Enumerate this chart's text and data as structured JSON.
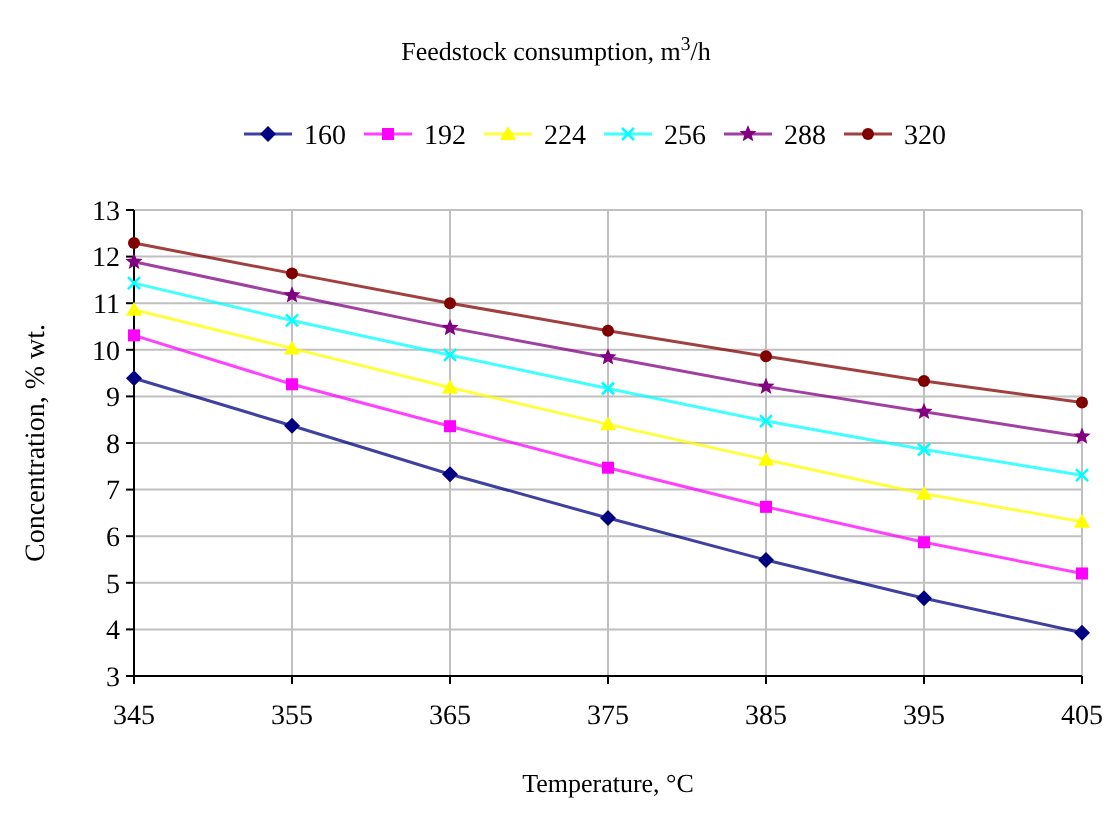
{
  "chart_data": {
    "type": "line",
    "legend_title": "Feedstock consumption, m$^{3}$/h",
    "xlabel": "Temperature, °C",
    "ylabel": "Concentration, % wt.",
    "x": [
      345,
      355,
      365,
      375,
      385,
      395,
      405
    ],
    "series": [
      {
        "name": "160",
        "color": "#000080",
        "marker": "diamond",
        "values": [
          9.39,
          8.37,
          7.33,
          6.39,
          5.49,
          4.67,
          3.93
        ]
      },
      {
        "name": "192",
        "color": "#ff00ff",
        "marker": "square",
        "values": [
          10.31,
          9.26,
          8.36,
          7.47,
          6.63,
          5.87,
          5.2
        ]
      },
      {
        "name": "224",
        "color": "#ffff00",
        "marker": "triangle",
        "values": [
          10.86,
          10.03,
          9.19,
          8.4,
          7.64,
          6.91,
          6.31
        ]
      },
      {
        "name": "256",
        "color": "#00ffff",
        "marker": "cross",
        "values": [
          11.43,
          10.63,
          9.89,
          9.17,
          8.47,
          7.86,
          7.31
        ]
      },
      {
        "name": "288",
        "color": "#800080",
        "marker": "star",
        "values": [
          11.89,
          11.17,
          10.47,
          9.84,
          9.21,
          8.67,
          8.14
        ]
      },
      {
        "name": "320",
        "color": "#800000",
        "marker": "circle",
        "values": [
          12.29,
          11.64,
          11.0,
          10.41,
          9.86,
          9.33,
          8.87
        ]
      }
    ],
    "xlim": [
      345,
      405
    ],
    "xticks": [
      345,
      355,
      365,
      375,
      385,
      395,
      405
    ],
    "ylim": [
      3,
      13
    ],
    "yticks": [
      3,
      4,
      5,
      6,
      7,
      8,
      9,
      10,
      11,
      12,
      13
    ],
    "grid": true,
    "legend": "top"
  }
}
